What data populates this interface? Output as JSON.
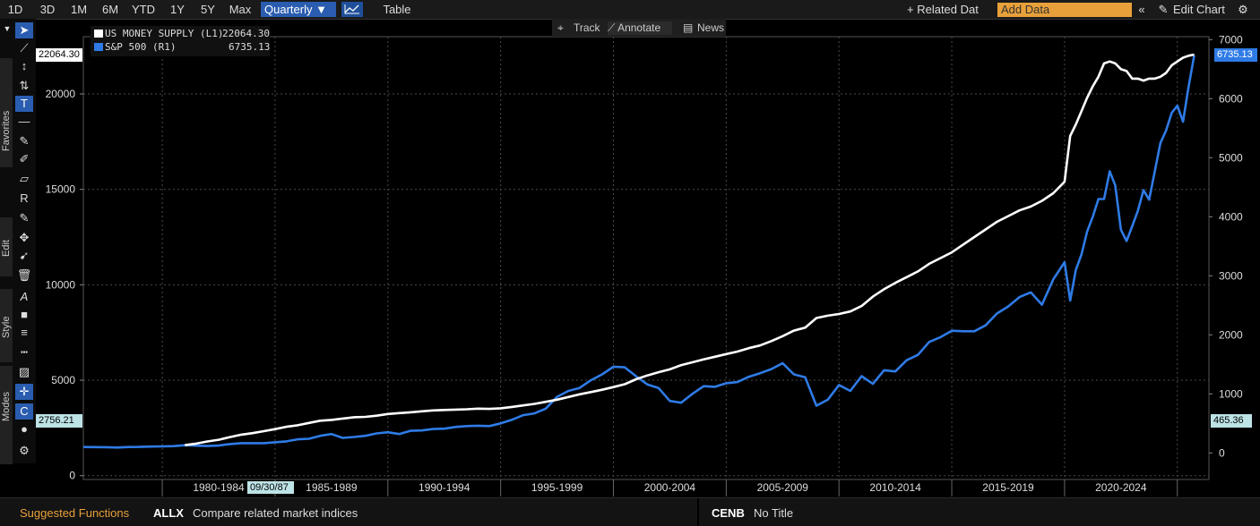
{
  "toolbar": {
    "periods": [
      "1D",
      "3D",
      "1M",
      "6M",
      "YTD",
      "1Y",
      "5Y",
      "Max"
    ],
    "frequency": "Quarterly",
    "frequency_arrow": "▼",
    "table_label": "Table",
    "related_data": "+ Related Dat",
    "add_data_placeholder": "Add Data",
    "collapse_icon": "«",
    "edit_chart": "Edit Chart",
    "gear": "⚙"
  },
  "subtoolbar": {
    "track": "Track",
    "annotate": "Annotate",
    "news": "News"
  },
  "left_panel": {
    "favorites": "Favorites",
    "edit": "Edit",
    "style": "Style",
    "modes": "Modes"
  },
  "legend": {
    "series": [
      {
        "label": "US MONEY SUPPLY (L1)",
        "value": "22064.30",
        "color": "#ffffff"
      },
      {
        "label": "S&P 500 (R1)",
        "value": "6735.13",
        "color": "#2f7be6"
      }
    ]
  },
  "tags": {
    "left_top": "22064.30",
    "left_bottom": "2756.21",
    "right_top": "6735.13",
    "right_bottom": "465.36",
    "crosshair_date": "09/30/87"
  },
  "bottom": {
    "suggested": "Suggested Functions",
    "fn1_code": "ALLX",
    "fn1_desc": "Compare related market indices",
    "fn2_code": "CENB",
    "fn2_desc": "No Title"
  },
  "chart_data": {
    "type": "line",
    "x_labels": [
      "1980-1984",
      "1985-1989",
      "1990-1994",
      "1995-1999",
      "2000-2004",
      "2005-2009",
      "2010-2014",
      "2015-2019",
      "2020-2024"
    ],
    "left_axis": {
      "ticks": [
        0,
        5000,
        10000,
        15000,
        20000
      ],
      "range": [
        -200,
        23000
      ]
    },
    "right_axis": {
      "ticks": [
        0,
        1000,
        2000,
        3000,
        4000,
        5000,
        6000,
        7000
      ],
      "range": [
        -450,
        7050
      ]
    },
    "x_range": [
      1976.5,
      2026.4
    ],
    "colors": {
      "money": "#ffffff",
      "spx": "#2f7be6"
    },
    "series": [
      {
        "name": "US MONEY SUPPLY (L1)",
        "axis": "left",
        "points": [
          [
            1981.0,
            1600
          ],
          [
            1981.5,
            1680
          ],
          [
            1982.0,
            1790
          ],
          [
            1982.5,
            1880
          ],
          [
            1983.0,
            2020
          ],
          [
            1983.5,
            2150
          ],
          [
            1984.0,
            2230
          ],
          [
            1984.5,
            2330
          ],
          [
            1985.0,
            2440
          ],
          [
            1985.5,
            2560
          ],
          [
            1986.0,
            2640
          ],
          [
            1986.5,
            2760
          ],
          [
            1987.0,
            2880
          ],
          [
            1987.5,
            2920
          ],
          [
            1988.0,
            2990
          ],
          [
            1988.5,
            3060
          ],
          [
            1989.0,
            3080
          ],
          [
            1989.5,
            3140
          ],
          [
            1990.0,
            3230
          ],
          [
            1990.5,
            3280
          ],
          [
            1991.0,
            3320
          ],
          [
            1991.5,
            3370
          ],
          [
            1992.0,
            3420
          ],
          [
            1992.5,
            3440
          ],
          [
            1993.0,
            3460
          ],
          [
            1993.5,
            3480
          ],
          [
            1994.0,
            3510
          ],
          [
            1994.5,
            3500
          ],
          [
            1995.0,
            3530
          ],
          [
            1995.5,
            3600
          ],
          [
            1996.0,
            3680
          ],
          [
            1996.5,
            3760
          ],
          [
            1997.0,
            3870
          ],
          [
            1997.5,
            3980
          ],
          [
            1998.0,
            4120
          ],
          [
            1998.5,
            4260
          ],
          [
            1999.0,
            4380
          ],
          [
            1999.5,
            4500
          ],
          [
            2000.0,
            4640
          ],
          [
            2000.5,
            4790
          ],
          [
            2001.0,
            5050
          ],
          [
            2001.5,
            5250
          ],
          [
            2002.0,
            5420
          ],
          [
            2002.5,
            5570
          ],
          [
            2003.0,
            5790
          ],
          [
            2003.5,
            5940
          ],
          [
            2004.0,
            6090
          ],
          [
            2004.5,
            6230
          ],
          [
            2005.0,
            6370
          ],
          [
            2005.5,
            6500
          ],
          [
            2006.0,
            6680
          ],
          [
            2006.5,
            6820
          ],
          [
            2007.0,
            7050
          ],
          [
            2007.5,
            7310
          ],
          [
            2008.0,
            7600
          ],
          [
            2008.5,
            7760
          ],
          [
            2009.0,
            8260
          ],
          [
            2009.5,
            8380
          ],
          [
            2010.0,
            8470
          ],
          [
            2010.5,
            8600
          ],
          [
            2011.0,
            8890
          ],
          [
            2011.5,
            9380
          ],
          [
            2012.0,
            9770
          ],
          [
            2012.5,
            10100
          ],
          [
            2013.0,
            10400
          ],
          [
            2013.5,
            10700
          ],
          [
            2014.0,
            11100
          ],
          [
            2014.5,
            11400
          ],
          [
            2015.0,
            11700
          ],
          [
            2015.5,
            12100
          ],
          [
            2016.0,
            12500
          ],
          [
            2016.5,
            12900
          ],
          [
            2017.0,
            13300
          ],
          [
            2017.5,
            13600
          ],
          [
            2018.0,
            13900
          ],
          [
            2018.5,
            14100
          ],
          [
            2019.0,
            14400
          ],
          [
            2019.5,
            14800
          ],
          [
            2020.0,
            15400
          ],
          [
            2020.25,
            17800
          ],
          [
            2020.5,
            18400
          ],
          [
            2020.75,
            19100
          ],
          [
            2021.0,
            19800
          ],
          [
            2021.25,
            20400
          ],
          [
            2021.5,
            20900
          ],
          [
            2021.75,
            21600
          ],
          [
            2022.0,
            21700
          ],
          [
            2022.25,
            21600
          ],
          [
            2022.5,
            21300
          ],
          [
            2022.75,
            21200
          ],
          [
            2023.0,
            20800
          ],
          [
            2023.25,
            20800
          ],
          [
            2023.5,
            20700
          ],
          [
            2023.75,
            20800
          ],
          [
            2024.0,
            20800
          ],
          [
            2024.25,
            20900
          ],
          [
            2024.5,
            21100
          ],
          [
            2024.75,
            21500
          ],
          [
            2025.0,
            21700
          ],
          [
            2025.25,
            21900
          ],
          [
            2025.5,
            22000
          ],
          [
            2025.75,
            22064.3
          ]
        ]
      },
      {
        "name": "S&P 500 (R1)",
        "axis": "right",
        "points": [
          [
            1976.5,
            100
          ],
          [
            1977.0,
            98
          ],
          [
            1977.5,
            97
          ],
          [
            1978.0,
            91
          ],
          [
            1978.5,
            100
          ],
          [
            1979.0,
            102
          ],
          [
            1979.5,
            108
          ],
          [
            1980.0,
            110
          ],
          [
            1980.5,
            115
          ],
          [
            1981.0,
            130
          ],
          [
            1981.5,
            122
          ],
          [
            1982.0,
            116
          ],
          [
            1982.5,
            125
          ],
          [
            1983.0,
            150
          ],
          [
            1983.5,
            165
          ],
          [
            1984.0,
            165
          ],
          [
            1984.5,
            165
          ],
          [
            1985.0,
            180
          ],
          [
            1985.5,
            195
          ],
          [
            1986.0,
            230
          ],
          [
            1986.5,
            240
          ],
          [
            1987.0,
            290
          ],
          [
            1987.5,
            320
          ],
          [
            1988.0,
            255
          ],
          [
            1988.5,
            270
          ],
          [
            1989.0,
            290
          ],
          [
            1989.5,
            330
          ],
          [
            1990.0,
            350
          ],
          [
            1990.5,
            320
          ],
          [
            1991.0,
            375
          ],
          [
            1991.5,
            380
          ],
          [
            1992.0,
            405
          ],
          [
            1992.5,
            410
          ],
          [
            1993.0,
            440
          ],
          [
            1993.5,
            455
          ],
          [
            1994.0,
            460
          ],
          [
            1994.5,
            455
          ],
          [
            1995.0,
            500
          ],
          [
            1995.5,
            560
          ],
          [
            1996.0,
            640
          ],
          [
            1996.5,
            670
          ],
          [
            1997.0,
            750
          ],
          [
            1997.5,
            950
          ],
          [
            1998.0,
            1050
          ],
          [
            1998.5,
            1100
          ],
          [
            1999.0,
            1230
          ],
          [
            1999.5,
            1330
          ],
          [
            2000.0,
            1460
          ],
          [
            2000.5,
            1450
          ],
          [
            2001.0,
            1300
          ],
          [
            2001.5,
            1160
          ],
          [
            2002.0,
            1100
          ],
          [
            2002.5,
            880
          ],
          [
            2003.0,
            850
          ],
          [
            2003.5,
            1000
          ],
          [
            2004.0,
            1130
          ],
          [
            2004.5,
            1120
          ],
          [
            2005.0,
            1180
          ],
          [
            2005.5,
            1200
          ],
          [
            2006.0,
            1290
          ],
          [
            2006.5,
            1350
          ],
          [
            2007.0,
            1420
          ],
          [
            2007.5,
            1520
          ],
          [
            2008.0,
            1330
          ],
          [
            2008.5,
            1280
          ],
          [
            2009.0,
            800
          ],
          [
            2009.5,
            900
          ],
          [
            2010.0,
            1150
          ],
          [
            2010.5,
            1050
          ],
          [
            2011.0,
            1300
          ],
          [
            2011.5,
            1170
          ],
          [
            2012.0,
            1400
          ],
          [
            2012.5,
            1380
          ],
          [
            2013.0,
            1570
          ],
          [
            2013.5,
            1660
          ],
          [
            2014.0,
            1880
          ],
          [
            2014.5,
            1960
          ],
          [
            2015.0,
            2070
          ],
          [
            2015.5,
            2060
          ],
          [
            2016.0,
            2060
          ],
          [
            2016.5,
            2160
          ],
          [
            2017.0,
            2360
          ],
          [
            2017.5,
            2480
          ],
          [
            2018.0,
            2640
          ],
          [
            2018.5,
            2720
          ],
          [
            2019.0,
            2510
          ],
          [
            2019.5,
            2940
          ],
          [
            2020.0,
            3230
          ],
          [
            2020.25,
            2580
          ],
          [
            2020.5,
            3100
          ],
          [
            2020.75,
            3360
          ],
          [
            2021.0,
            3750
          ],
          [
            2021.25,
            4000
          ],
          [
            2021.5,
            4300
          ],
          [
            2021.75,
            4300
          ],
          [
            2022.0,
            4770
          ],
          [
            2022.25,
            4530
          ],
          [
            2022.5,
            3780
          ],
          [
            2022.75,
            3590
          ],
          [
            2023.0,
            3840
          ],
          [
            2023.25,
            4100
          ],
          [
            2023.5,
            4450
          ],
          [
            2023.75,
            4290
          ],
          [
            2024.0,
            4770
          ],
          [
            2024.25,
            5250
          ],
          [
            2024.5,
            5460
          ],
          [
            2024.75,
            5760
          ],
          [
            2025.0,
            5880
          ],
          [
            2025.25,
            5610
          ],
          [
            2025.5,
            6200
          ],
          [
            2025.75,
            6735.13
          ]
        ]
      }
    ]
  }
}
